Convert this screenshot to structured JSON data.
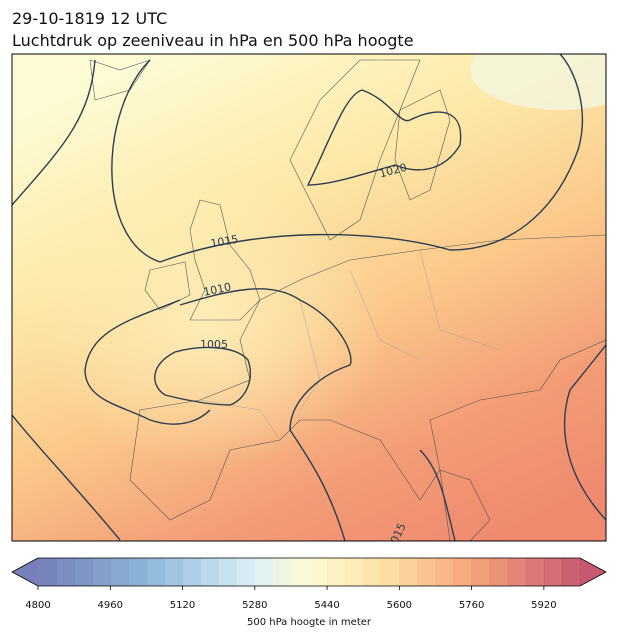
{
  "header": {
    "title_line1": "29-10-1819 12 UTC",
    "title_line2": "Luchtdruk op zeeniveau in hPa en 500 hPa hoogte"
  },
  "map": {
    "isobar_labels": [
      "1020",
      "1015",
      "1010",
      "1005",
      "1015"
    ]
  },
  "colorbar": {
    "lim": [
      4800,
      6000
    ],
    "ticks": [
      4800,
      4960,
      5120,
      5280,
      5440,
      5600,
      5760,
      5920
    ],
    "label": "500 hPa hoogte in meter"
  }
}
